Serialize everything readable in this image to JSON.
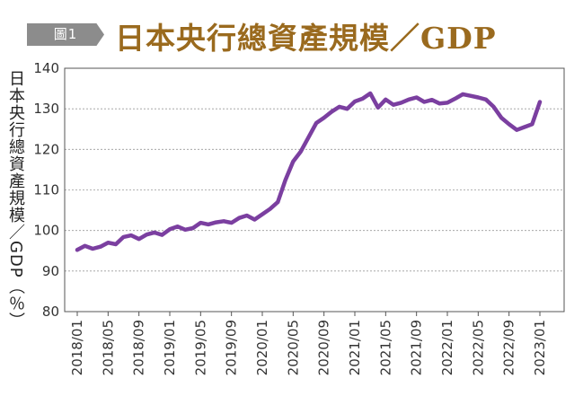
{
  "header": {
    "badge": "圖1",
    "title": "日本央行總資產規模／GDP"
  },
  "chart_data": {
    "type": "line",
    "title": "日本央行總資產規模／GDP",
    "ylabel": "日本央行總資產規模／GDP（％）",
    "xlabel": "",
    "ylim": [
      80,
      140
    ],
    "yticks": [
      80,
      90,
      100,
      110,
      120,
      130,
      140
    ],
    "grid": true,
    "line_color": "#7b3fa0",
    "x_tick_labels": [
      "2018/01",
      "2018/05",
      "2018/09",
      "2019/01",
      "2019/05",
      "2019/09",
      "2020/01",
      "2020/05",
      "2020/09",
      "2021/01",
      "2021/05",
      "2021/09",
      "2022/01",
      "2022/05",
      "2022/09",
      "2023/01"
    ],
    "x": [
      "2018/01",
      "2018/02",
      "2018/03",
      "2018/04",
      "2018/05",
      "2018/06",
      "2018/07",
      "2018/08",
      "2018/09",
      "2018/10",
      "2018/11",
      "2018/12",
      "2019/01",
      "2019/02",
      "2019/03",
      "2019/04",
      "2019/05",
      "2019/06",
      "2019/07",
      "2019/08",
      "2019/09",
      "2019/10",
      "2019/11",
      "2019/12",
      "2020/01",
      "2020/02",
      "2020/03",
      "2020/04",
      "2020/05",
      "2020/06",
      "2020/07",
      "2020/08",
      "2020/09",
      "2020/10",
      "2020/11",
      "2020/12",
      "2021/01",
      "2021/02",
      "2021/03",
      "2021/04",
      "2021/05",
      "2021/06",
      "2021/07",
      "2021/08",
      "2021/09",
      "2021/10",
      "2021/11",
      "2021/12",
      "2022/01",
      "2022/02",
      "2022/03",
      "2022/04",
      "2022/05",
      "2022/06",
      "2022/07",
      "2022/08",
      "2022/09",
      "2022/10",
      "2022/11",
      "2022/12",
      "2023/01"
    ],
    "values": [
      95.2,
      96.2,
      95.5,
      96.0,
      97.0,
      96.6,
      98.4,
      98.8,
      97.9,
      99.0,
      99.5,
      98.9,
      100.3,
      101.0,
      100.2,
      100.6,
      101.9,
      101.5,
      102.0,
      102.3,
      101.9,
      103.1,
      103.7,
      102.7,
      104.0,
      105.3,
      107.0,
      112.5,
      117.0,
      119.5,
      123.0,
      126.5,
      127.8,
      129.3,
      130.5,
      130.0,
      131.8,
      132.5,
      133.8,
      130.3,
      132.3,
      131.0,
      131.5,
      132.3,
      132.8,
      131.7,
      132.2,
      131.3,
      131.5,
      132.5,
      133.6,
      133.2,
      132.8,
      132.3,
      130.5,
      127.8,
      126.2,
      124.8,
      125.5,
      126.2,
      131.7
    ]
  }
}
